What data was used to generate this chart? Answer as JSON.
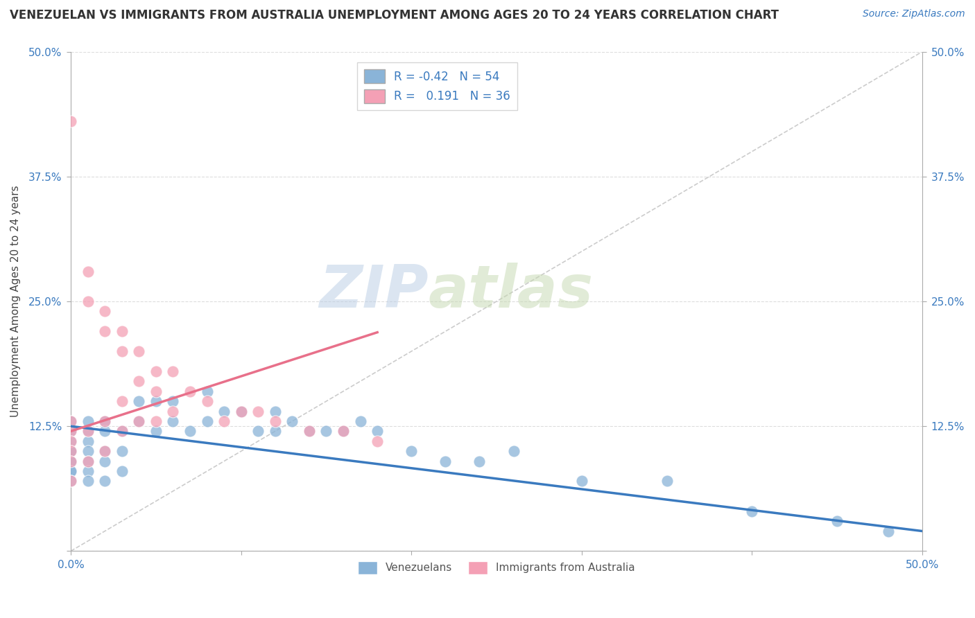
{
  "title": "VENEZUELAN VS IMMIGRANTS FROM AUSTRALIA UNEMPLOYMENT AMONG AGES 20 TO 24 YEARS CORRELATION CHART",
  "source_text": "Source: ZipAtlas.com",
  "ylabel": "Unemployment Among Ages 20 to 24 years",
  "xlim": [
    0.0,
    0.5
  ],
  "ylim": [
    0.0,
    0.5
  ],
  "watermark_zip": "ZIP",
  "watermark_atlas": "atlas",
  "venezuelan_R": -0.42,
  "venezuelan_N": 54,
  "australia_R": 0.191,
  "australia_N": 36,
  "blue_color": "#8ab4d8",
  "pink_color": "#f4a0b5",
  "blue_line_color": "#3a7abf",
  "pink_line_color": "#e8708a",
  "venezuelan_x": [
    0.0,
    0.0,
    0.0,
    0.0,
    0.0,
    0.0,
    0.0,
    0.0,
    0.0,
    0.0,
    0.01,
    0.01,
    0.01,
    0.01,
    0.01,
    0.01,
    0.01,
    0.02,
    0.02,
    0.02,
    0.02,
    0.02,
    0.03,
    0.03,
    0.03,
    0.04,
    0.04,
    0.05,
    0.05,
    0.06,
    0.06,
    0.07,
    0.08,
    0.08,
    0.09,
    0.1,
    0.11,
    0.12,
    0.12,
    0.13,
    0.14,
    0.15,
    0.16,
    0.17,
    0.18,
    0.2,
    0.22,
    0.24,
    0.26,
    0.3,
    0.35,
    0.4,
    0.45,
    0.48
  ],
  "venezuelan_y": [
    0.13,
    0.12,
    0.11,
    0.1,
    0.1,
    0.09,
    0.09,
    0.08,
    0.08,
    0.07,
    0.13,
    0.12,
    0.11,
    0.1,
    0.09,
    0.08,
    0.07,
    0.13,
    0.12,
    0.1,
    0.09,
    0.07,
    0.12,
    0.1,
    0.08,
    0.15,
    0.13,
    0.15,
    0.12,
    0.15,
    0.13,
    0.12,
    0.16,
    0.13,
    0.14,
    0.14,
    0.12,
    0.14,
    0.12,
    0.13,
    0.12,
    0.12,
    0.12,
    0.13,
    0.12,
    0.1,
    0.09,
    0.09,
    0.1,
    0.07,
    0.07,
    0.04,
    0.03,
    0.02
  ],
  "australia_x": [
    0.0,
    0.0,
    0.0,
    0.0,
    0.0,
    0.0,
    0.0,
    0.01,
    0.01,
    0.01,
    0.01,
    0.02,
    0.02,
    0.02,
    0.02,
    0.03,
    0.03,
    0.03,
    0.03,
    0.04,
    0.04,
    0.04,
    0.05,
    0.05,
    0.05,
    0.06,
    0.06,
    0.07,
    0.08,
    0.09,
    0.1,
    0.11,
    0.12,
    0.14,
    0.16,
    0.18
  ],
  "australia_y": [
    0.43,
    0.13,
    0.12,
    0.11,
    0.1,
    0.09,
    0.07,
    0.28,
    0.25,
    0.12,
    0.09,
    0.24,
    0.22,
    0.13,
    0.1,
    0.22,
    0.2,
    0.15,
    0.12,
    0.2,
    0.17,
    0.13,
    0.18,
    0.16,
    0.13,
    0.18,
    0.14,
    0.16,
    0.15,
    0.13,
    0.14,
    0.14,
    0.13,
    0.12,
    0.12,
    0.11
  ]
}
